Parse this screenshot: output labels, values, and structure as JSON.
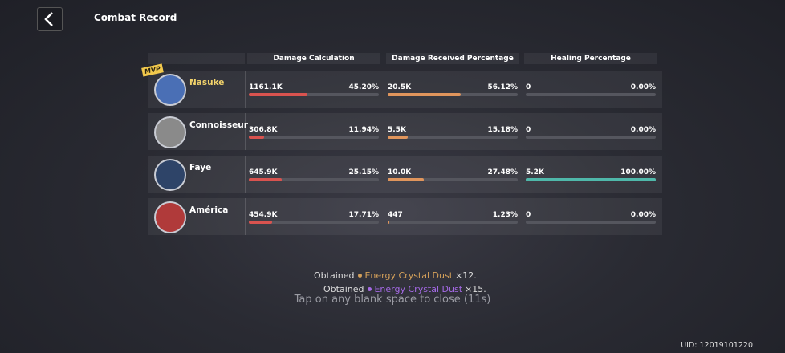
{
  "header": {
    "title": "Combat Record"
  },
  "table": {
    "columns": [
      "Damage Calculation",
      "Damage Received Percentage",
      "Healing Percentage"
    ],
    "rows": [
      {
        "name": "Nasuke",
        "badge": "MVP",
        "cells": [
          {
            "value": "1161.1K",
            "percent": "45.20%"
          },
          {
            "value": "20.5K",
            "percent": "56.12%"
          },
          {
            "value": "0",
            "percent": "0.00%"
          }
        ]
      },
      {
        "name": "Connoisseur",
        "cells": [
          {
            "value": "306.8K",
            "percent": "11.94%"
          },
          {
            "value": "5.5K",
            "percent": "15.18%"
          },
          {
            "value": "0",
            "percent": "0.00%"
          }
        ]
      },
      {
        "name": "Faye",
        "cells": [
          {
            "value": "645.9K",
            "percent": "25.15%"
          },
          {
            "value": "10.0K",
            "percent": "27.48%"
          },
          {
            "value": "5.2K",
            "percent": "100.00%"
          }
        ]
      },
      {
        "name": "América",
        "cells": [
          {
            "value": "454.9K",
            "percent": "17.71%"
          },
          {
            "value": "447",
            "percent": "1.23%"
          },
          {
            "value": "0",
            "percent": "0.00%"
          }
        ]
      }
    ]
  },
  "rewards": [
    {
      "label": "Obtained",
      "item": "Energy Crystal Dust",
      "count": "×12."
    },
    {
      "label": "Obtained",
      "item": "Energy Crystal Dust",
      "count": "×15."
    }
  ],
  "hint": "Tap on any blank space to close (11s)",
  "uid": "UID: 12019101220"
}
